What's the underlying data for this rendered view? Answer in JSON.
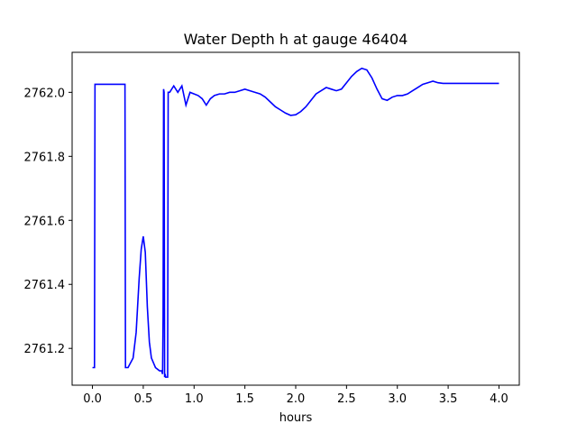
{
  "chart_data": {
    "type": "line",
    "title": "Water Depth h at gauge 46404",
    "xlabel": "hours",
    "ylabel": "",
    "xlim": [
      -0.2,
      4.2
    ],
    "ylim": [
      2761.085,
      2762.125
    ],
    "xticks": [
      0.0,
      0.5,
      1.0,
      1.5,
      2.0,
      2.5,
      3.0,
      3.5,
      4.0
    ],
    "xtick_labels": [
      "0.0",
      "0.5",
      "1.0",
      "1.5",
      "2.0",
      "2.5",
      "3.0",
      "3.5",
      "4.0"
    ],
    "yticks": [
      2761.2,
      2761.4,
      2761.6,
      2761.8,
      2762.0
    ],
    "ytick_labels": [
      "2761.2",
      "2761.4",
      "2761.6",
      "2761.8",
      "2762.0"
    ],
    "grid": false,
    "series": [
      {
        "color": "#0000ff",
        "x": [
          0.0,
          0.02,
          0.025,
          0.32,
          0.325,
          0.35,
          0.4,
          0.43,
          0.46,
          0.48,
          0.5,
          0.52,
          0.54,
          0.56,
          0.58,
          0.62,
          0.66,
          0.68,
          0.69,
          0.695,
          0.7,
          0.705,
          0.71,
          0.715,
          0.72,
          0.725,
          0.73,
          0.735,
          0.74,
          0.745,
          0.76,
          0.8,
          0.84,
          0.88,
          0.92,
          0.96,
          1.0,
          1.04,
          1.08,
          1.12,
          1.16,
          1.2,
          1.25,
          1.3,
          1.35,
          1.4,
          1.45,
          1.5,
          1.55,
          1.6,
          1.65,
          1.7,
          1.75,
          1.8,
          1.85,
          1.9,
          1.95,
          2.0,
          2.05,
          2.1,
          2.15,
          2.2,
          2.25,
          2.3,
          2.35,
          2.4,
          2.45,
          2.5,
          2.55,
          2.6,
          2.65,
          2.7,
          2.75,
          2.8,
          2.85,
          2.9,
          2.95,
          3.0,
          3.05,
          3.1,
          3.15,
          3.2,
          3.25,
          3.3,
          3.35,
          3.4,
          3.45,
          3.5,
          3.55,
          3.6,
          3.65,
          3.7,
          3.75,
          3.8,
          3.85,
          3.9,
          3.95,
          4.0
        ],
        "y": [
          2761.14,
          2761.14,
          2762.025,
          2762.025,
          2761.14,
          2761.14,
          2761.17,
          2761.25,
          2761.42,
          2761.51,
          2761.55,
          2761.5,
          2761.33,
          2761.22,
          2761.17,
          2761.14,
          2761.13,
          2761.13,
          2761.12,
          2761.3,
          2762.01,
          2762.0,
          2761.11,
          2761.12,
          2761.11,
          2761.11,
          2761.11,
          2761.11,
          2761.11,
          2762.0,
          2762.0,
          2762.02,
          2762.0,
          2762.02,
          2761.96,
          2762.0,
          2761.995,
          2761.99,
          2761.98,
          2761.96,
          2761.98,
          2761.99,
          2761.995,
          2761.995,
          2762.0,
          2762.0,
          2762.005,
          2762.01,
          2762.005,
          2762.0,
          2761.995,
          2761.985,
          2761.97,
          2761.955,
          2761.945,
          2761.935,
          2761.928,
          2761.93,
          2761.94,
          2761.955,
          2761.975,
          2761.995,
          2762.005,
          2762.015,
          2762.01,
          2762.005,
          2762.01,
          2762.03,
          2762.05,
          2762.065,
          2762.075,
          2762.07,
          2762.045,
          2762.01,
          2761.98,
          2761.975,
          2761.985,
          2761.99,
          2761.99,
          2761.995,
          2762.005,
          2762.015,
          2762.025,
          2762.03,
          2762.035,
          2762.03,
          2762.028,
          2762.028,
          2762.028,
          2762.028,
          2762.028,
          2762.028,
          2762.028,
          2762.028,
          2762.028,
          2762.028,
          2762.028,
          2762.028
        ]
      }
    ]
  }
}
